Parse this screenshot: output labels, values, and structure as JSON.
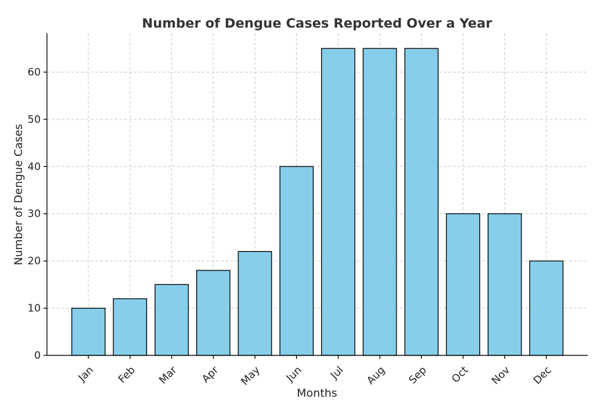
{
  "chart_data": {
    "type": "bar",
    "title": "Number of Dengue Cases Reported Over a Year",
    "xlabel": "Months",
    "ylabel": "Number of Dengue Cases",
    "categories": [
      "Jan",
      "Feb",
      "Mar",
      "Apr",
      "May",
      "Jun",
      "Jul",
      "Aug",
      "Sep",
      "Oct",
      "Nov",
      "Dec"
    ],
    "values": [
      10,
      12,
      15,
      18,
      22,
      40,
      65,
      65,
      65,
      30,
      30,
      20
    ],
    "ylim": [
      0,
      68.25
    ],
    "yticks": [
      0,
      10,
      20,
      30,
      40,
      50,
      60
    ],
    "grid": true,
    "bar_color": "#87ceeb",
    "edge_color": "#000000"
  }
}
